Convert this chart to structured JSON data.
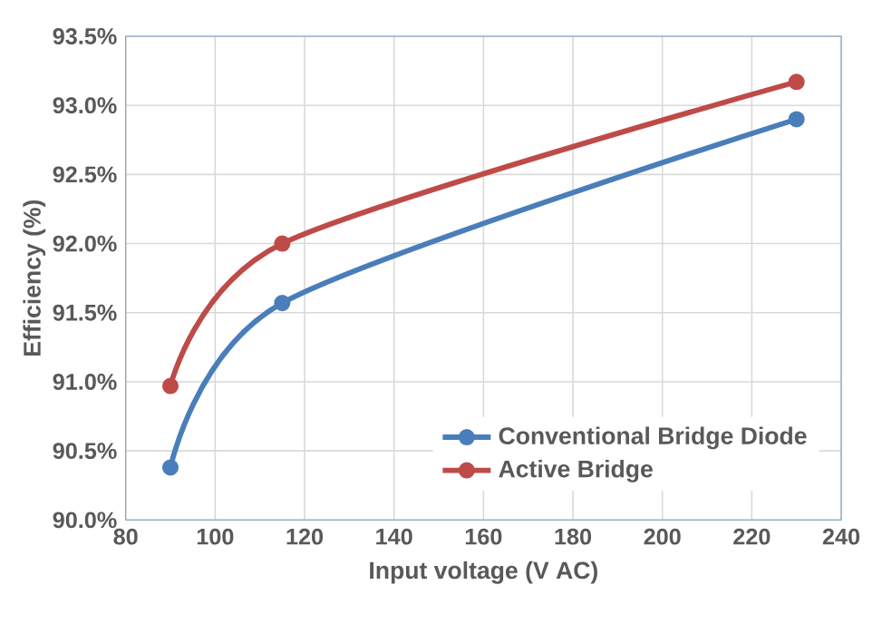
{
  "chart_data": {
    "type": "line",
    "xlabel": "Input voltage (V AC)",
    "ylabel": "Efficiency (%)",
    "x": [
      90,
      115,
      230
    ],
    "series": [
      {
        "name": "Conventional Bridge Diode",
        "color": "#4a7ebb",
        "values": [
          90.38,
          91.57,
          92.9
        ]
      },
      {
        "name": "Active Bridge",
        "color": "#be4b48",
        "values": [
          90.97,
          92.0,
          93.17
        ]
      }
    ],
    "xlim": [
      80,
      240
    ],
    "xticks": [
      80,
      100,
      120,
      140,
      160,
      180,
      200,
      220,
      240
    ],
    "ylim": [
      90.0,
      93.5
    ],
    "yticks": [
      {
        "value": 90.0,
        "label": "90.0%"
      },
      {
        "value": 90.5,
        "label": "90.5%"
      },
      {
        "value": 91.0,
        "label": "91.0%"
      },
      {
        "value": 91.5,
        "label": "91.5%"
      },
      {
        "value": 92.0,
        "label": "92.0%"
      },
      {
        "value": 92.5,
        "label": "92.5%"
      },
      {
        "value": 93.0,
        "label": "93.0%"
      },
      {
        "value": 93.5,
        "label": "93.5%"
      }
    ],
    "grid": true,
    "legend": "bottom right",
    "marker": "circle",
    "line_style": "solid"
  }
}
